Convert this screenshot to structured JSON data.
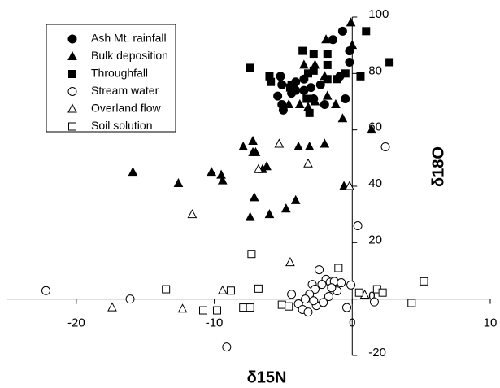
{
  "chart_data": {
    "type": "scatter",
    "x_label": "δ15N",
    "y_label": "δ18O",
    "xlim": [
      -25,
      10
    ],
    "ylim": [
      -20,
      100
    ],
    "xticks": [
      -20,
      -10,
      0,
      10
    ],
    "yticks": [
      -20,
      0,
      20,
      40,
      60,
      80,
      100
    ],
    "legend": "top-left",
    "series": [
      {
        "name": "Ash Mt. rainfall",
        "color": "#000000",
        "marker": "circle",
        "filled": true,
        "x": [
          -0.7,
          -1.4,
          -0.2,
          -0.2,
          -0.9,
          -5.2,
          -3.5,
          -2.3,
          -4.1,
          -5.1,
          -5.4,
          -5.1,
          -5.0,
          -2.8,
          -2.0,
          -0.5,
          -3.0,
          -4.4,
          -3.5,
          -4.1
        ],
        "values": [
          95,
          92,
          88,
          84,
          79,
          79,
          78,
          76,
          77,
          76,
          72,
          69,
          67,
          71,
          69,
          71,
          75,
          73,
          74,
          74
        ]
      },
      {
        "name": "Bulk deposition",
        "color": "#000000",
        "marker": "triangle",
        "filled": true,
        "x": [
          -15.9,
          -12.6,
          -10.2,
          -9.5,
          -9.4,
          -7.9,
          -7.2,
          -7.2,
          -7.0,
          -6.2,
          -6.5,
          -7.1,
          -7.4,
          -6.0,
          -4.8,
          -4.1,
          -3.9,
          -3.1,
          -2.0,
          -0.6,
          -0.7,
          1.4,
          -0.1,
          0,
          -3.5,
          -2.7,
          -4.6,
          -3.8,
          -3.2,
          -2.7,
          -1.8,
          -1.2,
          -1.9,
          -2.0
        ],
        "values": [
          45,
          41,
          45,
          44,
          42,
          54,
          56,
          52,
          52,
          47,
          46,
          36,
          29,
          30,
          32,
          35,
          54,
          54,
          55,
          40,
          64,
          60,
          98,
          90,
          83,
          83,
          69,
          69,
          68,
          70,
          72,
          69,
          92,
          79
        ]
      },
      {
        "name": "Throughfall",
        "color": "#000000",
        "marker": "square",
        "filled": true,
        "x": [
          1.0,
          2.7,
          0.6,
          -7.4,
          -6.0,
          -5.9,
          -4.4,
          -3.6,
          -2.8,
          -2.8,
          -1.8,
          -1.8,
          -1.8,
          -3.2,
          -3.3,
          -3.1,
          -4.5,
          -1.1,
          -0.5
        ],
        "values": [
          95,
          84,
          79,
          82,
          79,
          77,
          76,
          88,
          87,
          81,
          87,
          83,
          78,
          80,
          71,
          66,
          75,
          78,
          80
        ]
      },
      {
        "name": "Stream water",
        "color": "#000000",
        "marker": "circle",
        "filled": false,
        "x": [
          -22.2,
          -16.1,
          -9.1,
          2.4,
          0.4,
          -0.1,
          1.6,
          -0.4,
          -2.4,
          -1.9,
          -1.6,
          -1.3,
          -2.2,
          -2.9,
          -2.7,
          -3.1,
          -4.4,
          -3.9,
          -3.6,
          -3.2,
          -2.6,
          -2.1,
          -1.7,
          -1.1,
          -0.8,
          -2.8,
          -3.4,
          -1.5
        ],
        "values": [
          3,
          0,
          -17,
          54,
          26,
          5,
          -1,
          -3,
          10.4,
          7,
          6,
          6.3,
          5.2,
          5.2,
          3.5,
          1.7,
          1.7,
          -1.7,
          -3.7,
          -4.6,
          -2.3,
          -1.2,
          0.9,
          2.9,
          5.8,
          -0.6,
          0,
          4
        ]
      },
      {
        "name": "Overland flow",
        "color": "#000000",
        "marker": "triangle",
        "filled": false,
        "x": [
          -5.3,
          -6.8,
          -3.2,
          -0.2,
          -11.6,
          -4.5,
          -9.4,
          -12.3,
          -17.4,
          0.9
        ],
        "values": [
          55,
          46,
          48,
          40,
          30,
          13,
          3,
          -3.5,
          -3,
          1.5
        ]
      },
      {
        "name": "Soil solution",
        "color": "#000000",
        "marker": "square",
        "filled": false,
        "x": [
          -7.3,
          -1.0,
          -13.5,
          -8.8,
          -6.8,
          -10.8,
          -9.8,
          -7.9,
          -7.4,
          -5.1,
          -4.6,
          0.5,
          1.8,
          2.2,
          4.3,
          5.2
        ],
        "values": [
          16,
          11,
          3.5,
          3,
          3.7,
          -4,
          -4,
          -3,
          -3,
          -2,
          -2.6,
          2.3,
          3.5,
          2.3,
          -1.4,
          6.3
        ]
      }
    ]
  }
}
